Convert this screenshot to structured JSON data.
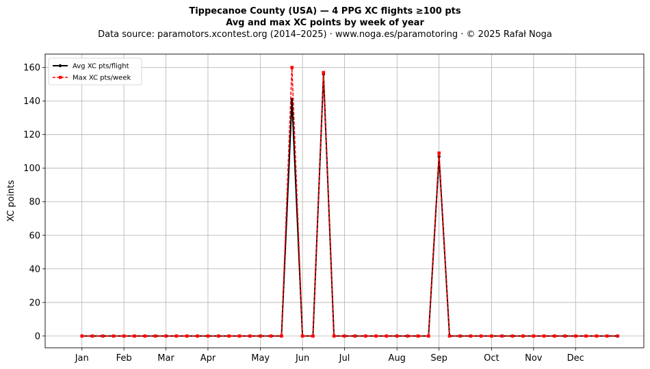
{
  "header": {
    "title_line1": "Tippecanoe County (USA)  —  4 PPG XC flights ≥100 pts",
    "title_line2": "Avg and max XC points by week of year",
    "subtitle": "Data source: paramotors.xcontest.org (2014–2025)  ·  www.noga.es/paramotoring  ·  © 2025 Rafał Noga"
  },
  "chart_data": {
    "type": "line",
    "title": "Tippecanoe County (USA)  —  4 PPG XC flights ≥100 pts",
    "ylabel": "XC points",
    "xlabel": "",
    "xlim": [
      -2.5,
      54.5
    ],
    "ylim": [
      -7,
      168
    ],
    "grid": true,
    "legend_position": "top-left",
    "x": [
      1,
      2,
      3,
      4,
      5,
      6,
      7,
      8,
      9,
      10,
      11,
      12,
      13,
      14,
      15,
      16,
      17,
      18,
      19,
      20,
      21,
      22,
      23,
      24,
      25,
      26,
      27,
      28,
      29,
      30,
      31,
      32,
      33,
      34,
      35,
      36,
      37,
      38,
      39,
      40,
      41,
      42,
      43,
      44,
      45,
      46,
      47,
      48,
      49,
      50,
      51,
      52
    ],
    "x_ticks": [
      {
        "label": "Jan",
        "x": 1
      },
      {
        "label": "Feb",
        "x": 5
      },
      {
        "label": "Mar",
        "x": 9
      },
      {
        "label": "Apr",
        "x": 13
      },
      {
        "label": "May",
        "x": 18
      },
      {
        "label": "Jun",
        "x": 22
      },
      {
        "label": "Jul",
        "x": 26
      },
      {
        "label": "Aug",
        "x": 31
      },
      {
        "label": "Sep",
        "x": 35
      },
      {
        "label": "Oct",
        "x": 40
      },
      {
        "label": "Nov",
        "x": 44
      },
      {
        "label": "Dec",
        "x": 48
      }
    ],
    "y_ticks": [
      0,
      20,
      40,
      60,
      80,
      100,
      120,
      140,
      160
    ],
    "series": [
      {
        "name": "Avg XC pts/flight",
        "color": "#000000",
        "values": [
          0,
          0,
          0,
          0,
          0,
          0,
          0,
          0,
          0,
          0,
          0,
          0,
          0,
          0,
          0,
          0,
          0,
          0,
          0,
          0,
          141,
          0,
          0,
          156,
          0,
          0,
          0,
          0,
          0,
          0,
          0,
          0,
          0,
          0,
          107,
          0,
          0,
          0,
          0,
          0,
          0,
          0,
          0,
          0,
          0,
          0,
          0,
          0,
          0,
          0,
          0,
          0
        ]
      },
      {
        "name": "Max XC pts/week",
        "color": "#ff0000",
        "values": [
          0,
          0,
          0,
          0,
          0,
          0,
          0,
          0,
          0,
          0,
          0,
          0,
          0,
          0,
          0,
          0,
          0,
          0,
          0,
          0,
          160,
          0,
          0,
          157,
          0,
          0,
          0,
          0,
          0,
          0,
          0,
          0,
          0,
          0,
          109,
          0,
          0,
          0,
          0,
          0,
          0,
          0,
          0,
          0,
          0,
          0,
          0,
          0,
          0,
          0,
          0,
          0
        ]
      }
    ]
  }
}
